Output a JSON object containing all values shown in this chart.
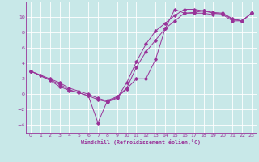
{
  "background_color": "#c8e8e8",
  "grid_color": "#ffffff",
  "line_color": "#993399",
  "marker_color": "#993399",
  "xlabel": "Windchill (Refroidissement éolien,°C)",
  "xlim": [
    -0.5,
    23.5
  ],
  "ylim": [
    -5.0,
    12.0
  ],
  "xticks": [
    0,
    1,
    2,
    3,
    4,
    5,
    6,
    7,
    8,
    9,
    10,
    11,
    12,
    13,
    14,
    15,
    16,
    17,
    18,
    19,
    20,
    21,
    22,
    23
  ],
  "yticks": [
    -4,
    -2,
    0,
    2,
    4,
    6,
    8,
    10
  ],
  "curve1_x": [
    0,
    1,
    2,
    3,
    4,
    5,
    6,
    7,
    8,
    9,
    10,
    11,
    12,
    13,
    14,
    15,
    16,
    17,
    18,
    19,
    20,
    21,
    22,
    23
  ],
  "curve1_y": [
    3,
    2.5,
    2.0,
    1.5,
    0.8,
    0.4,
    0.0,
    -0.5,
    -0.9,
    -0.4,
    0.7,
    2.0,
    2.0,
    4.5,
    8.5,
    11.0,
    10.5,
    10.5,
    10.5,
    10.3,
    10.3,
    9.5,
    9.5,
    10.5
  ],
  "curve2_x": [
    0,
    2,
    3,
    4,
    5,
    6,
    7,
    8,
    9,
    10,
    11,
    12,
    13,
    14,
    15,
    16,
    17,
    18,
    19,
    20,
    21,
    22,
    23
  ],
  "curve2_y": [
    3,
    1.8,
    1.0,
    0.5,
    0.2,
    -0.2,
    -3.7,
    -0.8,
    -0.3,
    0.8,
    3.5,
    5.5,
    7.0,
    8.5,
    9.5,
    10.5,
    10.6,
    10.8,
    10.5,
    10.4,
    9.7,
    9.5,
    10.5
  ],
  "curve3_x": [
    0,
    3,
    4,
    5,
    6,
    7,
    8,
    9,
    10,
    11,
    12,
    13,
    14,
    15,
    16,
    17,
    18,
    19,
    20,
    21,
    22,
    23
  ],
  "curve3_y": [
    3,
    1.3,
    0.6,
    0.2,
    -0.2,
    -0.7,
    -1.0,
    -0.5,
    1.5,
    4.2,
    6.5,
    8.2,
    9.2,
    10.2,
    11.0,
    11.0,
    10.8,
    10.6,
    10.5,
    9.8,
    9.5,
    10.5
  ]
}
